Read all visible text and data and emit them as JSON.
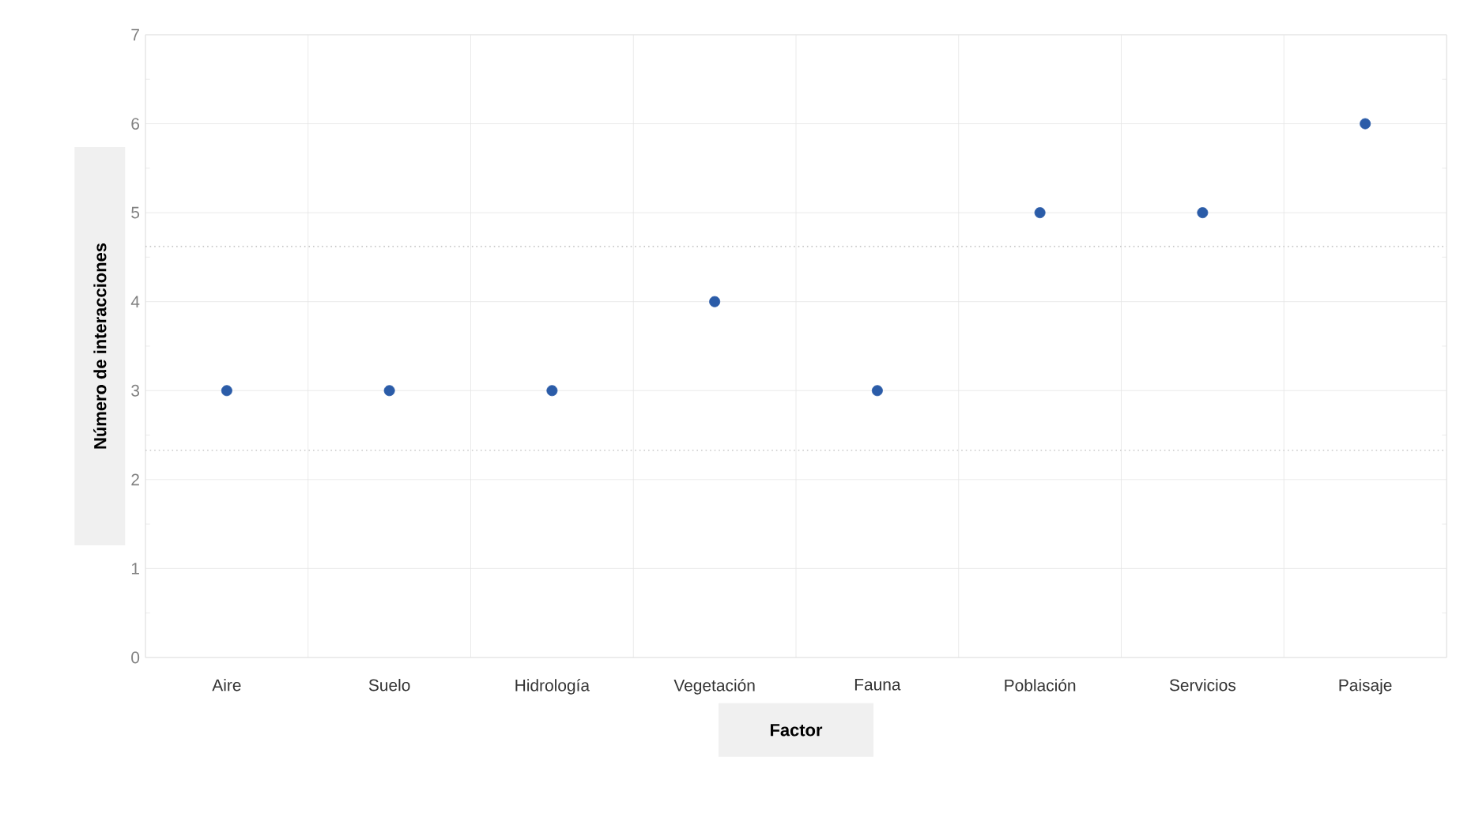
{
  "chart_data": {
    "type": "scatter",
    "xlabel": "Factor",
    "ylabel": "Número de interacciones",
    "categories": [
      "Aire",
      "Suelo",
      "Hidrología",
      "Vegetación",
      "Fauna",
      "Población",
      "Servicios",
      "Paisaje"
    ],
    "series": [
      {
        "color": "#2b5ca8",
        "values": [
          3,
          3,
          3,
          4,
          3,
          5,
          5,
          6
        ]
      }
    ],
    "ylim": [
      0,
      7
    ],
    "yticks": [
      0,
      1,
      2,
      3,
      4,
      5,
      6,
      7
    ],
    "grid": true,
    "ref_lines": [
      {
        "axis": "y",
        "value": 4.62,
        "color": "#c8c8c8",
        "line_style": "dotted"
      },
      {
        "axis": "y",
        "value": 2.33,
        "color": "#c8c8c8",
        "line_style": "dotted"
      }
    ]
  }
}
